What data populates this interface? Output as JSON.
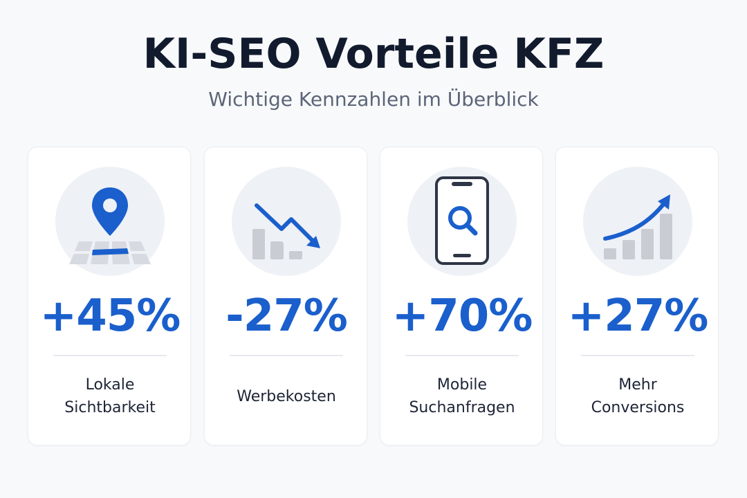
{
  "header": {
    "title": "KI-SEO Vorteile KFZ",
    "subtitle": "Wichtige Kennzahlen im Überblick"
  },
  "colors": {
    "accent": "#1a5fcc",
    "icon_gray": "#c9ccd3",
    "icon_dark": "#2e3544",
    "circle_bg": "#eef1f6"
  },
  "cards": [
    {
      "icon": "map-pin-icon",
      "value": "+45%",
      "label": "Lokale\nSichtbarkeit"
    },
    {
      "icon": "declining-chart-icon",
      "value": "-27%",
      "label": "Werbekosten"
    },
    {
      "icon": "mobile-search-icon",
      "value": "+70%",
      "label": "Mobile\nSuchanfragen"
    },
    {
      "icon": "growth-chart-icon",
      "value": "+27%",
      "label": "Mehr\nConversions"
    }
  ]
}
